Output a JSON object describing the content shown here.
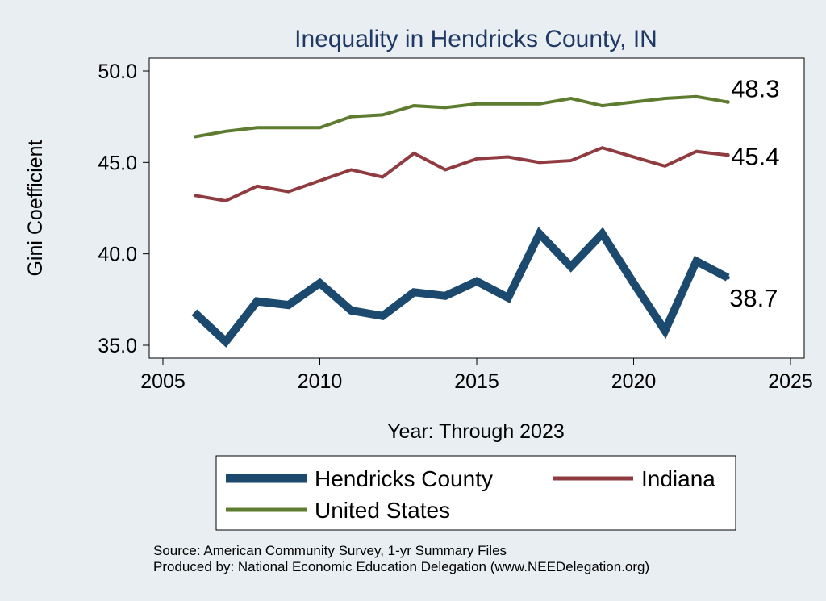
{
  "chart_data": {
    "type": "line",
    "title": "Inequality in Hendricks County, IN",
    "xlabel": "Year: Through 2023",
    "ylabel": "Gini Coefficient",
    "xlim": [
      2005,
      2025
    ],
    "ylim": [
      35,
      50
    ],
    "x_ticks": [
      2005,
      2010,
      2015,
      2020,
      2025
    ],
    "x_tick_labels": [
      "2005",
      "2010",
      "2015",
      "2020",
      "2025"
    ],
    "y_ticks": [
      35,
      40,
      45,
      50
    ],
    "y_tick_labels": [
      "35.0",
      "40.0",
      "45.0",
      "50.0"
    ],
    "grid": false,
    "x": [
      2006,
      2007,
      2008,
      2009,
      2010,
      2011,
      2012,
      2013,
      2014,
      2015,
      2016,
      2017,
      2018,
      2019,
      2020,
      2021,
      2022,
      2023
    ],
    "series": [
      {
        "name": "Hendricks County",
        "color": "#1b4a6e",
        "values": [
          36.8,
          35.2,
          37.4,
          37.2,
          38.4,
          36.9,
          36.6,
          37.9,
          37.7,
          38.5,
          37.6,
          41.1,
          39.3,
          41.1,
          38.4,
          35.8,
          39.6,
          38.7
        ],
        "end_label": "38.7"
      },
      {
        "name": "Indiana",
        "color": "#903b40",
        "values": [
          43.2,
          42.9,
          43.7,
          43.4,
          44.0,
          44.6,
          44.2,
          45.5,
          44.6,
          45.2,
          45.3,
          45.0,
          45.1,
          45.8,
          45.3,
          44.8,
          45.6,
          45.4
        ],
        "end_label": "45.4"
      },
      {
        "name": "United States",
        "color": "#5d7c2f",
        "values": [
          46.4,
          46.7,
          46.9,
          46.9,
          46.9,
          47.5,
          47.6,
          48.1,
          48.0,
          48.2,
          48.2,
          48.2,
          48.5,
          48.1,
          48.3,
          48.5,
          48.6,
          48.3
        ],
        "end_label": "48.3"
      }
    ],
    "legend": {
      "placement": "bottom",
      "entries": [
        "Hendricks County",
        "Indiana",
        "United States"
      ]
    },
    "source": "Source: American Community Survey, 1-yr Summary Files",
    "produced_by": "Produced by: National Economic Education Delegation (www.NEEDelegation.org)"
  }
}
